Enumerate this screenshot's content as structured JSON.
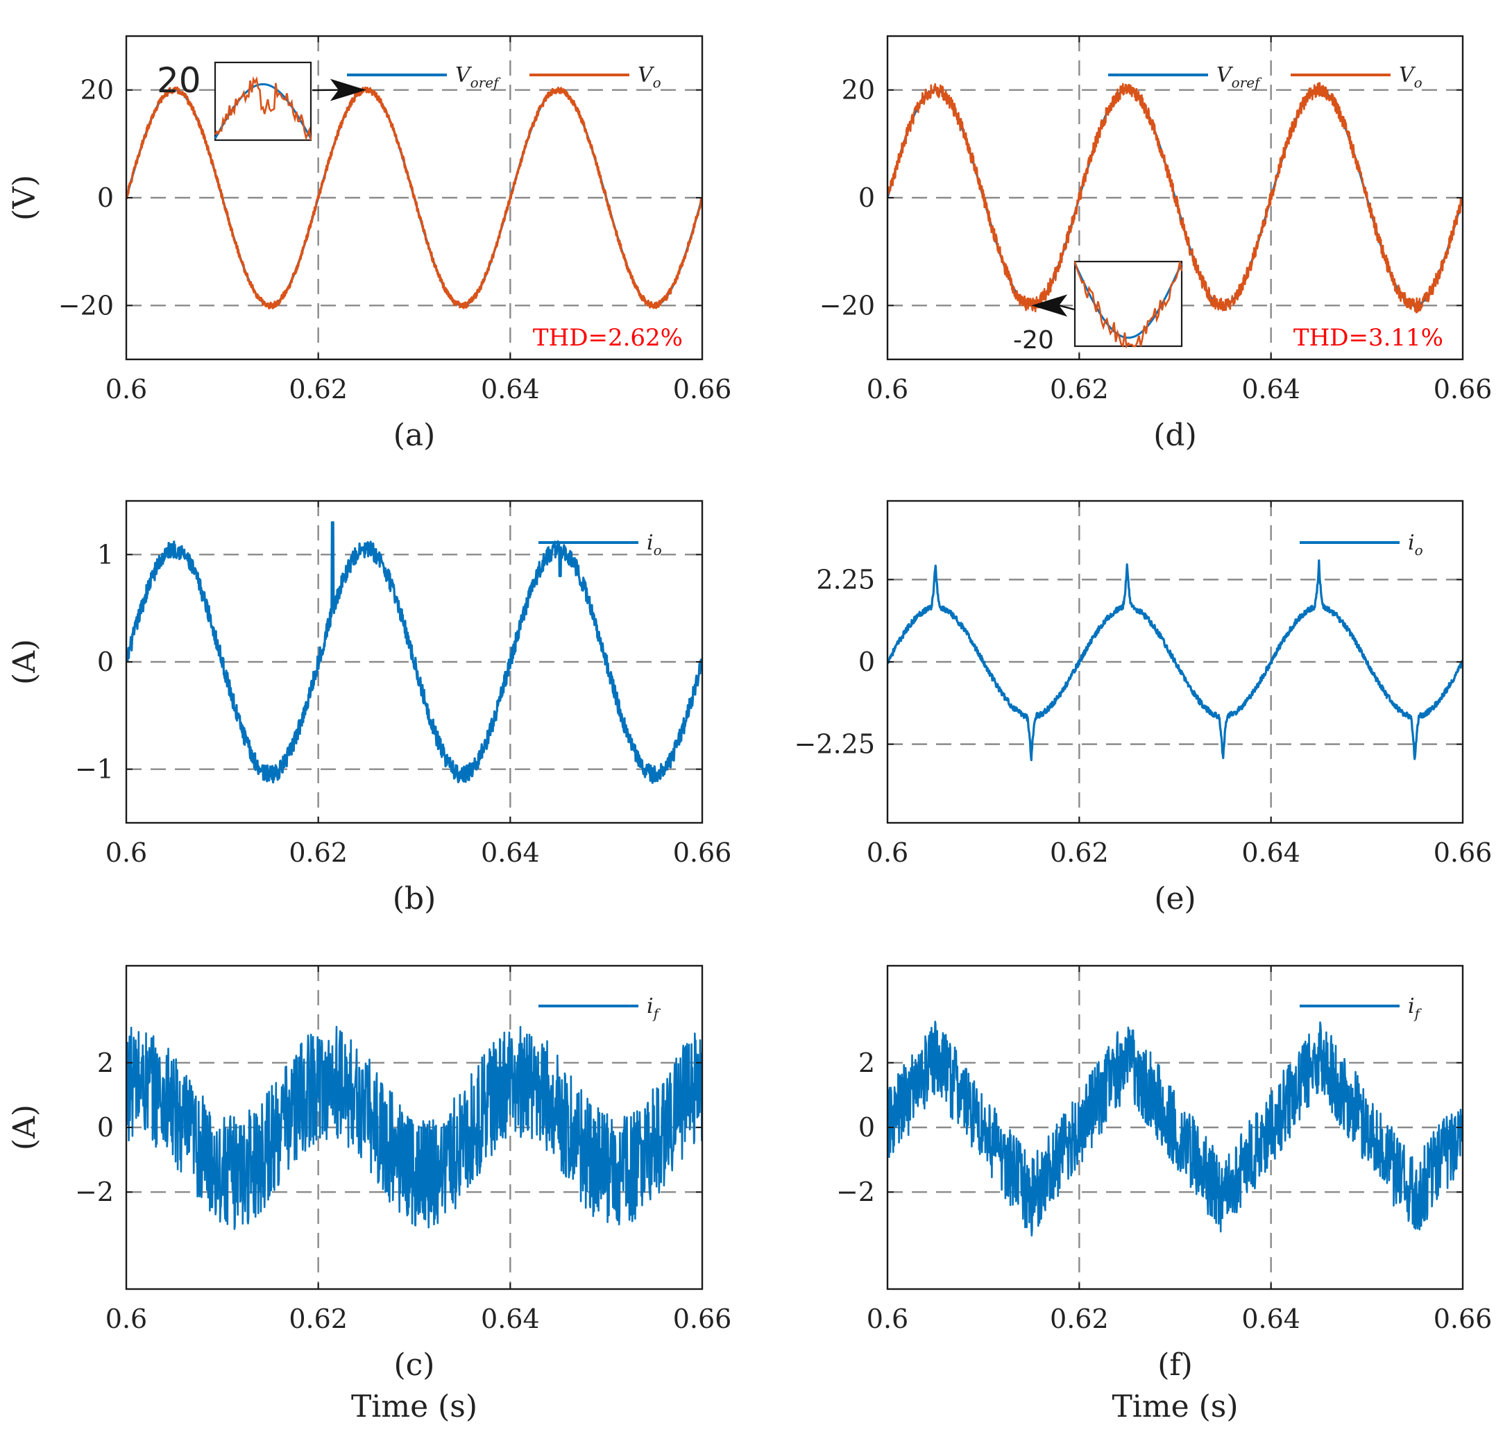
{
  "figure": {
    "colors": {
      "reference": "#0072bd",
      "output": "#d95319",
      "thd": "#ff0000",
      "grid": "#8a8a8a"
    },
    "xlabel": "Time (s)"
  },
  "chart_data": [
    {
      "id": "a",
      "type": "line",
      "caption": "(a)",
      "ylabel": "(V)",
      "xlabel": "",
      "xlim": [
        0.6,
        0.66
      ],
      "ylim": [
        -30,
        30
      ],
      "xticks": [
        0.6,
        0.62,
        0.64,
        0.66
      ],
      "xtick_labels": [
        "0.6",
        "0.62",
        "0.64",
        "0.66"
      ],
      "yticks": [
        -20,
        0,
        20
      ],
      "ytick_labels": [
        "−20",
        "0",
        "20"
      ],
      "grid": true,
      "legend": "top-right",
      "series": [
        {
          "name": "V_oref",
          "legend_main": "V",
          "legend_sub": "oref",
          "color": "#0072bd",
          "waveform": "sine",
          "amplitude": 20,
          "frequency_hz": 50,
          "noise": 0
        },
        {
          "name": "V_o",
          "legend_main": "V",
          "legend_sub": "o",
          "color": "#d95319",
          "waveform": "sine",
          "amplitude": 20,
          "frequency_hz": 50,
          "noise": 0.35
        }
      ],
      "annotation": "THD=2.62%",
      "inset": {
        "label": "20",
        "target_x": 0.625,
        "target_y": 20
      }
    },
    {
      "id": "b",
      "type": "line",
      "caption": "(b)",
      "ylabel": "(A)",
      "xlabel": "",
      "xlim": [
        0.6,
        0.66
      ],
      "ylim": [
        -1.5,
        1.5
      ],
      "xticks": [
        0.6,
        0.62,
        0.64,
        0.66
      ],
      "xtick_labels": [
        "0.6",
        "0.62",
        "0.64",
        "0.66"
      ],
      "yticks": [
        -1,
        0,
        1
      ],
      "ytick_labels": [
        "−1",
        "0",
        "1"
      ],
      "grid": true,
      "legend": "top-right",
      "series": [
        {
          "name": "i_o",
          "legend_main": "i",
          "legend_sub": "o",
          "color": "#0072bd",
          "waveform": "sine",
          "amplitude": 1.05,
          "frequency_hz": 50,
          "noise": 0.05,
          "spikes": [
            [
              0.6215,
              1.3
            ],
            [
              0.6452,
              0.8
            ]
          ]
        }
      ]
    },
    {
      "id": "c",
      "type": "line",
      "caption": "(c)",
      "ylabel": "(A)",
      "xlabel": "Time (s)",
      "xlim": [
        0.6,
        0.66
      ],
      "ylim": [
        -5,
        5
      ],
      "xticks": [
        0.6,
        0.62,
        0.64,
        0.66
      ],
      "xtick_labels": [
        "0.6",
        "0.62",
        "0.64",
        "0.66"
      ],
      "yticks": [
        -2,
        0,
        2
      ],
      "ytick_labels": [
        "−2",
        "0",
        "2"
      ],
      "grid": true,
      "legend": "top-right",
      "series": [
        {
          "name": "i_f",
          "legend_main": "i",
          "legend_sub": "f",
          "color": "#0072bd",
          "waveform": "sine",
          "amplitude": 1.4,
          "frequency_hz": 50,
          "phase_deg": 70,
          "noise": 0.8
        }
      ]
    },
    {
      "id": "d",
      "type": "line",
      "caption": "(d)",
      "ylabel": "",
      "xlabel": "",
      "xlim": [
        0.6,
        0.66
      ],
      "ylim": [
        -30,
        30
      ],
      "xticks": [
        0.6,
        0.62,
        0.64,
        0.66
      ],
      "xtick_labels": [
        "0.6",
        "0.62",
        "0.64",
        "0.66"
      ],
      "yticks": [
        -20,
        0,
        20
      ],
      "ytick_labels": [
        "−20",
        "0",
        "20"
      ],
      "grid": true,
      "legend": "top-right",
      "series": [
        {
          "name": "V_oref",
          "legend_main": "V",
          "legend_sub": "oref",
          "color": "#0072bd",
          "waveform": "sine",
          "amplitude": 20,
          "frequency_hz": 50,
          "noise": 0
        },
        {
          "name": "V_o",
          "legend_main": "V",
          "legend_sub": "o",
          "color": "#d95319",
          "waveform": "sine",
          "amplitude": 20,
          "frequency_hz": 50,
          "noise": 0.6
        }
      ],
      "annotation": "THD=3.11%",
      "inset": {
        "label": "-20",
        "target_x": 0.615,
        "target_y": -20
      }
    },
    {
      "id": "e",
      "type": "line",
      "caption": "(e)",
      "ylabel": "",
      "xlabel": "",
      "xlim": [
        0.6,
        0.66
      ],
      "ylim": [
        -4.4,
        4.4
      ],
      "xticks": [
        0.6,
        0.62,
        0.64,
        0.66
      ],
      "xtick_labels": [
        "0.6",
        "0.62",
        "0.64",
        "0.66"
      ],
      "yticks": [
        -2.25,
        0,
        2.25
      ],
      "ytick_labels": [
        "−2.25",
        "0",
        "2.25"
      ],
      "grid": true,
      "legend": "top-right",
      "series": [
        {
          "name": "i_o",
          "legend_main": "i",
          "legend_sub": "o",
          "color": "#0072bd",
          "waveform": "peaky",
          "amplitude": 1.5,
          "peak": 2.7,
          "frequency_hz": 50,
          "noise": 0.05
        }
      ]
    },
    {
      "id": "f",
      "type": "line",
      "caption": "(f)",
      "ylabel": "",
      "xlabel": "Time (s)",
      "xlim": [
        0.6,
        0.66
      ],
      "ylim": [
        -5,
        5
      ],
      "xticks": [
        0.6,
        0.62,
        0.64,
        0.66
      ],
      "xtick_labels": [
        "0.6",
        "0.62",
        "0.64",
        "0.66"
      ],
      "yticks": [
        -2,
        0,
        2
      ],
      "ytick_labels": [
        "−2",
        "0",
        "2"
      ],
      "grid": true,
      "legend": "top-right",
      "series": [
        {
          "name": "i_f",
          "legend_main": "i",
          "legend_sub": "f",
          "color": "#0072bd",
          "waveform": "sawtooth",
          "amplitude": 2.2,
          "frequency_hz": 50,
          "noise": 0.75
        }
      ]
    }
  ]
}
